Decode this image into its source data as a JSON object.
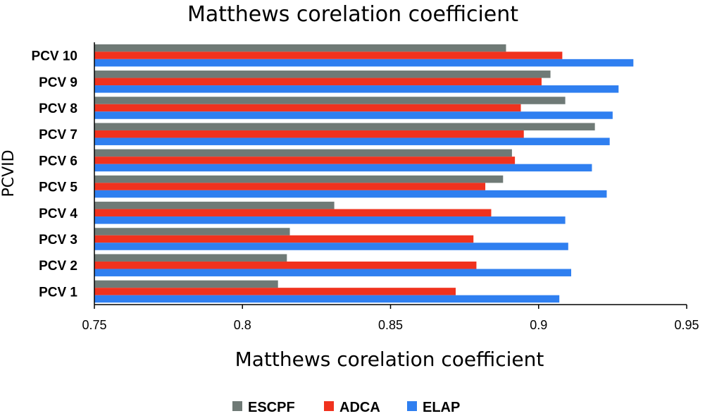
{
  "chart_data": {
    "type": "bar",
    "orientation": "horizontal",
    "title": "Matthews corelation coefficient",
    "xlabel": "Matthews corelation coefficient",
    "ylabel": "PCVID",
    "categories": [
      "PCV 1",
      "PCV 2",
      "PCV 3",
      "PCV 4",
      "PCV 5",
      "PCV 6",
      "PCV 7",
      "PCV 8",
      "PCV 9",
      "PCV 10"
    ],
    "xlim": [
      0.75,
      0.95
    ],
    "xticks": [
      0.75,
      0.8,
      0.85,
      0.9,
      0.95
    ],
    "xtick_labels": [
      "0.75",
      "0.8",
      "0.85",
      "0.9",
      "0.95"
    ],
    "grid": false,
    "legend_position": "bottom",
    "series": [
      {
        "name": "ESCPF",
        "color": "#6f7a76",
        "values": [
          0.812,
          0.815,
          0.816,
          0.831,
          0.888,
          0.891,
          0.919,
          0.909,
          0.904,
          0.889
        ]
      },
      {
        "name": "ADCA",
        "color": "#f0321e",
        "values": [
          0.872,
          0.879,
          0.878,
          0.884,
          0.882,
          0.892,
          0.895,
          0.894,
          0.901,
          0.908
        ]
      },
      {
        "name": "ELAP",
        "color": "#2f7ff0",
        "values": [
          0.907,
          0.911,
          0.91,
          0.909,
          0.923,
          0.918,
          0.924,
          0.925,
          0.927,
          0.932
        ]
      }
    ]
  }
}
